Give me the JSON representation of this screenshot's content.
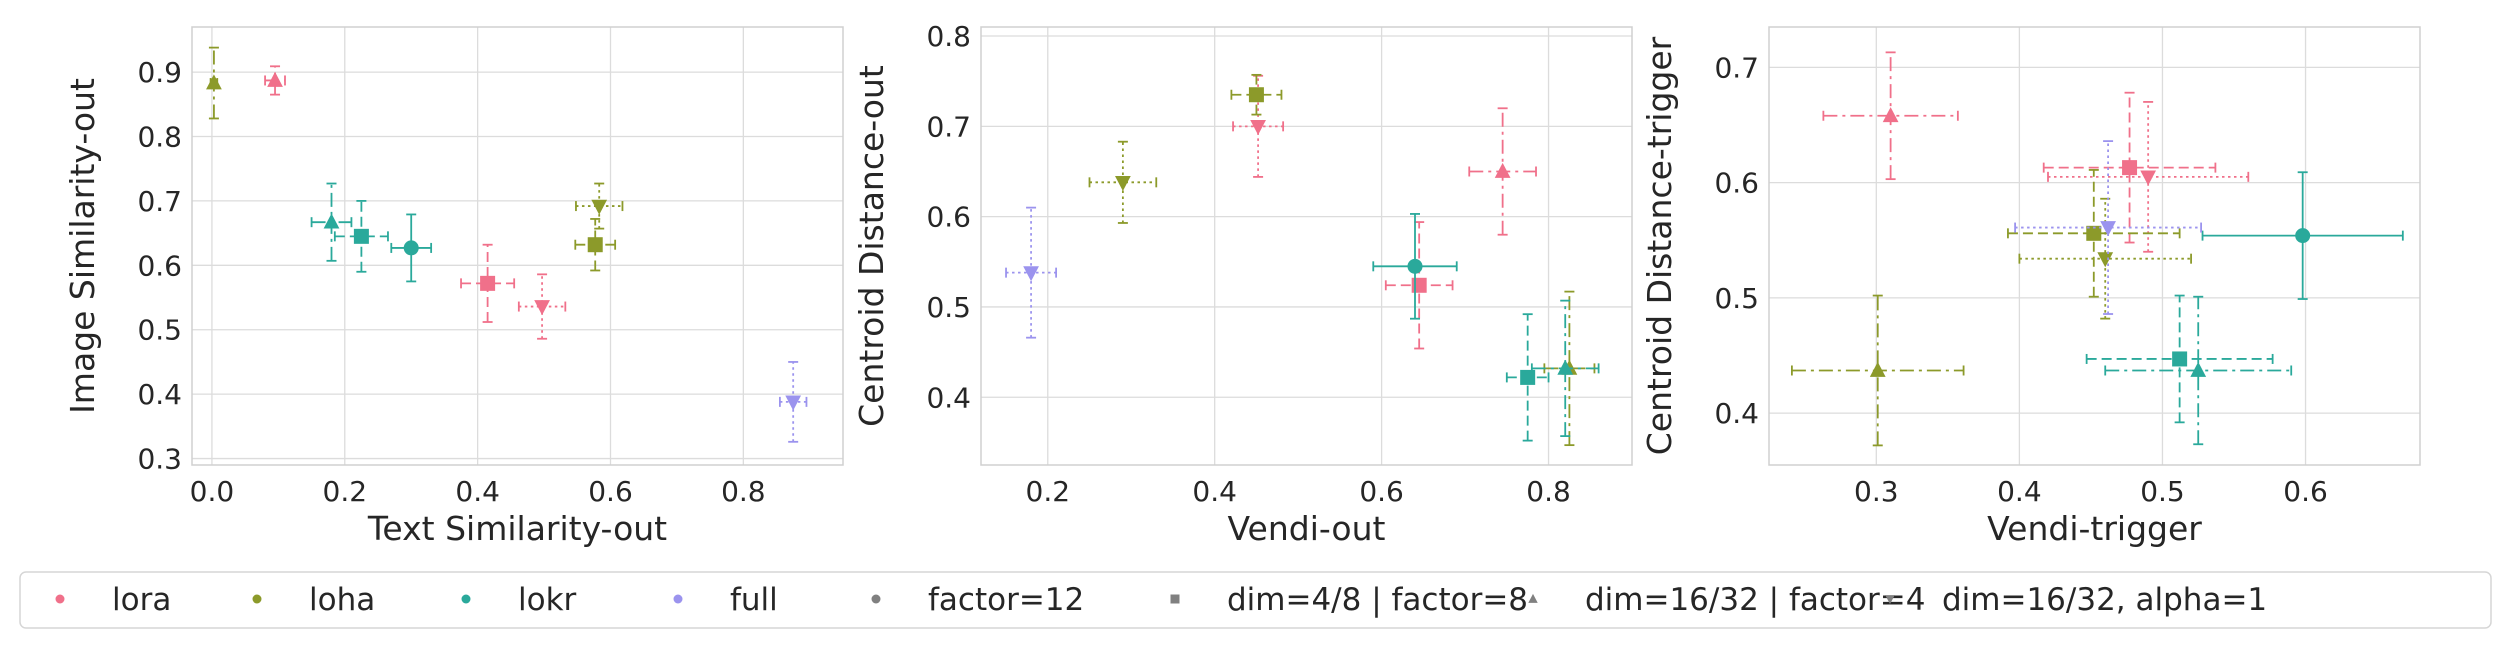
{
  "colors": {
    "lora": "#f0708a",
    "loha": "#8c9a2a",
    "lokr": "#2aa99b",
    "full": "#9b93ee",
    "marker_legend": "#808080",
    "grid": "#dcdcdc",
    "frame": "#d0d0d0"
  },
  "chart_data": [
    {
      "type": "scatter",
      "xlabel": "Text Similarity-out",
      "ylabel": "Image Similarity-out",
      "xlim": [
        -0.03,
        0.95
      ],
      "ylim": [
        0.29,
        0.97
      ],
      "xticks": [
        0.0,
        0.2,
        0.4,
        0.6,
        0.8
      ],
      "xticklabels": [
        "0.0",
        "0.2",
        "0.4",
        "0.6",
        "0.8"
      ],
      "yticks": [
        0.3,
        0.4,
        0.5,
        0.6,
        0.7,
        0.8,
        0.9
      ],
      "yticklabels": [
        "0.3",
        "0.4",
        "0.5",
        "0.6",
        "0.7",
        "0.8",
        "0.9"
      ],
      "grid": true,
      "points": [
        {
          "method": "lora",
          "marker": "triangle",
          "x": 0.095,
          "y": 0.887,
          "xerr": 0.015,
          "yerr": 0.022
        },
        {
          "method": "lora",
          "marker": "square",
          "x": 0.415,
          "y": 0.572,
          "xerr": 0.04,
          "yerr": 0.06
        },
        {
          "method": "lora",
          "marker": "tri_down",
          "x": 0.497,
          "y": 0.536,
          "xerr": 0.035,
          "yerr": 0.05
        },
        {
          "method": "loha",
          "marker": "triangle",
          "x": 0.003,
          "y": 0.883,
          "xerr": 0.005,
          "yerr": 0.055
        },
        {
          "method": "loha",
          "marker": "square",
          "x": 0.577,
          "y": 0.632,
          "xerr": 0.03,
          "yerr": 0.04
        },
        {
          "method": "loha",
          "marker": "tri_down",
          "x": 0.583,
          "y": 0.692,
          "xerr": 0.035,
          "yerr": 0.035
        },
        {
          "method": "lokr",
          "marker": "triangle",
          "x": 0.18,
          "y": 0.667,
          "xerr": 0.03,
          "yerr": 0.06
        },
        {
          "method": "lokr",
          "marker": "square",
          "x": 0.225,
          "y": 0.645,
          "xerr": 0.04,
          "yerr": 0.055
        },
        {
          "method": "lokr",
          "marker": "circle",
          "x": 0.3,
          "y": 0.627,
          "xerr": 0.03,
          "yerr": 0.052
        },
        {
          "method": "full",
          "marker": "tri_down",
          "x": 0.875,
          "y": 0.388,
          "xerr": 0.02,
          "yerr": 0.062
        }
      ]
    },
    {
      "type": "scatter",
      "xlabel": "Vendi-out",
      "ylabel": "Centroid Distance-out",
      "xlim": [
        0.12,
        0.9
      ],
      "ylim": [
        0.325,
        0.81
      ],
      "xticks": [
        0.2,
        0.4,
        0.6,
        0.8
      ],
      "xticklabels": [
        "0.2",
        "0.4",
        "0.6",
        "0.8"
      ],
      "yticks": [
        0.4,
        0.5,
        0.6,
        0.7,
        0.8
      ],
      "yticklabels": [
        "0.4",
        "0.5",
        "0.6",
        "0.7",
        "0.8"
      ],
      "grid": true,
      "points": [
        {
          "method": "lora",
          "marker": "triangle",
          "x": 0.745,
          "y": 0.65,
          "xerr": 0.04,
          "yerr": 0.07
        },
        {
          "method": "lora",
          "marker": "square",
          "x": 0.645,
          "y": 0.524,
          "xerr": 0.04,
          "yerr": 0.07
        },
        {
          "method": "lora",
          "marker": "tri_down",
          "x": 0.452,
          "y": 0.7,
          "xerr": 0.03,
          "yerr": 0.056
        },
        {
          "method": "loha",
          "marker": "triangle",
          "x": 0.825,
          "y": 0.432,
          "xerr": 0.03,
          "yerr": 0.085
        },
        {
          "method": "loha",
          "marker": "square",
          "x": 0.45,
          "y": 0.735,
          "xerr": 0.03,
          "yerr": 0.022
        },
        {
          "method": "loha",
          "marker": "tri_down",
          "x": 0.29,
          "y": 0.638,
          "xerr": 0.04,
          "yerr": 0.045
        },
        {
          "method": "lokr",
          "marker": "triangle",
          "x": 0.82,
          "y": 0.432,
          "xerr": 0.04,
          "yerr": 0.075
        },
        {
          "method": "lokr",
          "marker": "square",
          "x": 0.775,
          "y": 0.422,
          "xerr": 0.025,
          "yerr": 0.07
        },
        {
          "method": "lokr",
          "marker": "circle",
          "x": 0.64,
          "y": 0.545,
          "xerr": 0.05,
          "yerr": 0.058
        },
        {
          "method": "full",
          "marker": "tri_down",
          "x": 0.18,
          "y": 0.538,
          "xerr": 0.03,
          "yerr": 0.072
        }
      ]
    },
    {
      "type": "scatter",
      "xlabel": "Vendi-trigger",
      "ylabel": "Centroid Distance-trigger",
      "xlim": [
        0.225,
        0.68
      ],
      "ylim": [
        0.355,
        0.735
      ],
      "xticks": [
        0.3,
        0.4,
        0.5,
        0.6
      ],
      "xticklabels": [
        "0.3",
        "0.4",
        "0.5",
        "0.6"
      ],
      "yticks": [
        0.4,
        0.5,
        0.6,
        0.7
      ],
      "yticklabels": [
        "0.4",
        "0.5",
        "0.6",
        "0.7"
      ],
      "grid": true,
      "points": [
        {
          "method": "lora",
          "marker": "triangle",
          "x": 0.31,
          "y": 0.658,
          "xerr": 0.047,
          "yerr": 0.055
        },
        {
          "method": "lora",
          "marker": "square",
          "x": 0.477,
          "y": 0.613,
          "xerr": 0.06,
          "yerr": 0.065
        },
        {
          "method": "lora",
          "marker": "tri_down",
          "x": 0.49,
          "y": 0.605,
          "xerr": 0.07,
          "yerr": 0.065
        },
        {
          "method": "loha",
          "marker": "triangle",
          "x": 0.301,
          "y": 0.437,
          "xerr": 0.06,
          "yerr": 0.065
        },
        {
          "method": "loha",
          "marker": "square",
          "x": 0.452,
          "y": 0.556,
          "xerr": 0.06,
          "yerr": 0.055
        },
        {
          "method": "loha",
          "marker": "tri_down",
          "x": 0.46,
          "y": 0.534,
          "xerr": 0.06,
          "yerr": 0.052
        },
        {
          "method": "lokr",
          "marker": "triangle",
          "x": 0.525,
          "y": 0.437,
          "xerr": 0.065,
          "yerr": 0.064
        },
        {
          "method": "lokr",
          "marker": "square",
          "x": 0.512,
          "y": 0.447,
          "xerr": 0.065,
          "yerr": 0.055
        },
        {
          "method": "lokr",
          "marker": "circle",
          "x": 0.598,
          "y": 0.554,
          "xerr": 0.07,
          "yerr": 0.055
        },
        {
          "method": "full",
          "marker": "tri_down",
          "x": 0.462,
          "y": 0.561,
          "xerr": 0.065,
          "yerr": 0.075
        }
      ]
    }
  ],
  "legend": {
    "placement": "bottom",
    "items": [
      {
        "label": "lora",
        "kind": "color",
        "key": "lora",
        "marker": "circle"
      },
      {
        "label": "loha",
        "kind": "color",
        "key": "loha",
        "marker": "circle"
      },
      {
        "label": "lokr",
        "kind": "color",
        "key": "lokr",
        "marker": "circle"
      },
      {
        "label": "full",
        "kind": "color",
        "key": "full",
        "marker": "circle"
      },
      {
        "label": "factor=12",
        "kind": "marker",
        "key": "marker_legend",
        "marker": "circle"
      },
      {
        "label": "dim=4/8 | factor=8",
        "kind": "marker",
        "key": "marker_legend",
        "marker": "square"
      },
      {
        "label": "dim=16/32 | factor=4",
        "kind": "marker",
        "key": "marker_legend",
        "marker": "triangle"
      },
      {
        "label": "dim=16/32, alpha=1",
        "kind": "marker",
        "key": "marker_legend",
        "marker": "tri_down"
      }
    ]
  }
}
